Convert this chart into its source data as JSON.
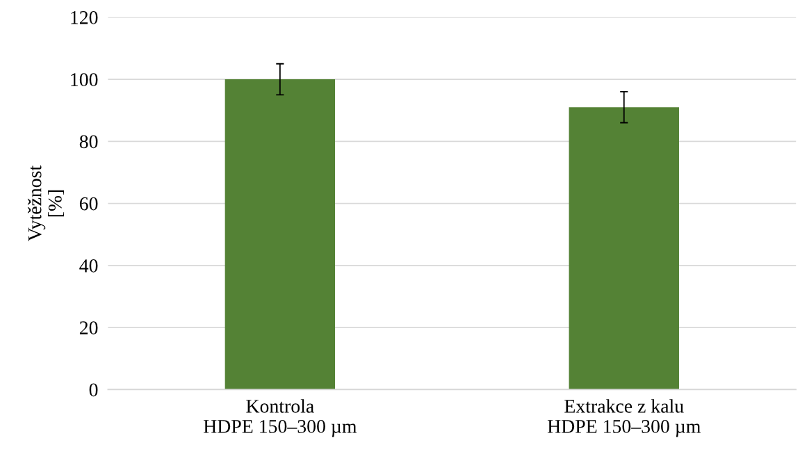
{
  "chart_data": {
    "type": "bar",
    "ylabel": "Vytěžnost\n[%]",
    "categories": [
      "Kontrola\nHDPE 150–300 µm",
      "Extrakce z kalu\nHDPE 150–300 µm"
    ],
    "values": [
      100,
      91
    ],
    "errors": [
      5,
      5
    ],
    "colors": [
      "#548235",
      "#548235"
    ],
    "ylim": [
      0,
      120
    ],
    "yticks": [
      0,
      20,
      40,
      60,
      80,
      100,
      120
    ],
    "grid": "y"
  }
}
